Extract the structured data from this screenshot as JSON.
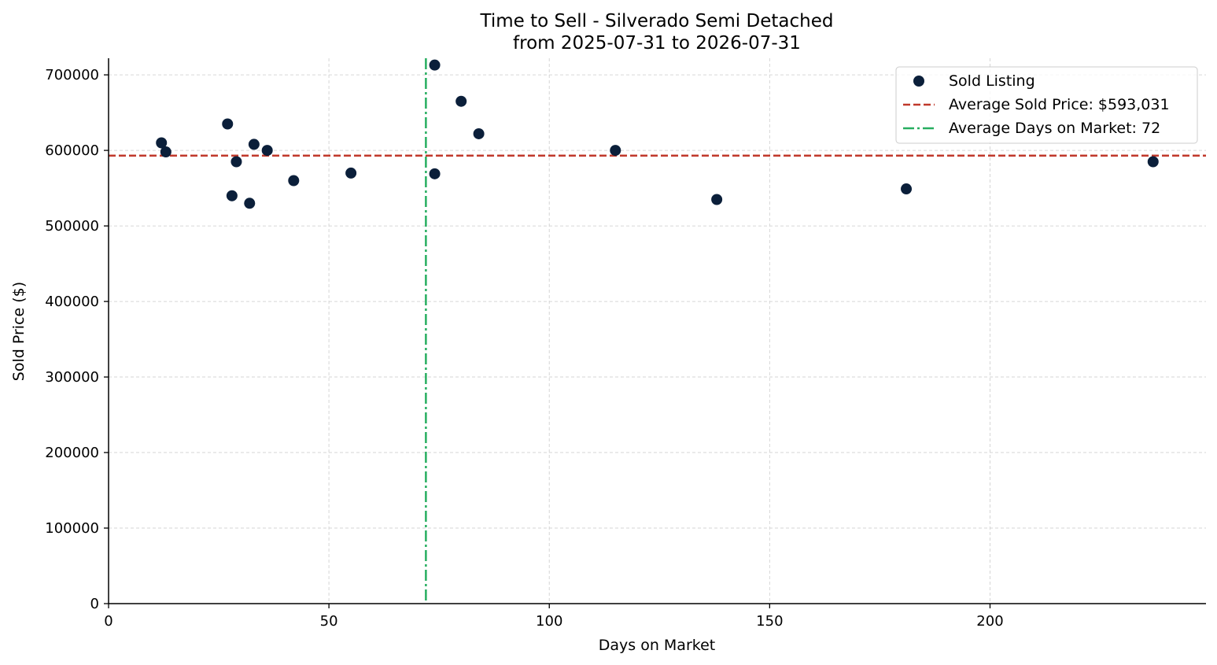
{
  "chart_data": {
    "type": "scatter",
    "title": "Time to Sell - Silverado Semi Detached",
    "subtitle": "from 2025-07-31 to 2026-07-31",
    "xlabel": "Days on Market",
    "ylabel": "Sold Price ($)",
    "xlim": [
      0,
      249
    ],
    "ylim": [
      0,
      722000
    ],
    "x_ticks": [
      0,
      50,
      100,
      150,
      200
    ],
    "y_ticks": [
      0,
      100000,
      200000,
      300000,
      400000,
      500000,
      600000,
      700000
    ],
    "grid": true,
    "legend_position": "top-right",
    "series": [
      {
        "name": "Sold Listing",
        "color": "#0b1f3a",
        "points": [
          {
            "x": 12,
            "y": 610000
          },
          {
            "x": 13,
            "y": 598000
          },
          {
            "x": 27,
            "y": 635000
          },
          {
            "x": 28,
            "y": 540000
          },
          {
            "x": 29,
            "y": 585000
          },
          {
            "x": 32,
            "y": 530000
          },
          {
            "x": 33,
            "y": 608000
          },
          {
            "x": 36,
            "y": 600000
          },
          {
            "x": 42,
            "y": 560000
          },
          {
            "x": 55,
            "y": 570000
          },
          {
            "x": 74,
            "y": 713000
          },
          {
            "x": 74,
            "y": 569000
          },
          {
            "x": 80,
            "y": 665000
          },
          {
            "x": 84,
            "y": 622000
          },
          {
            "x": 115,
            "y": 600000
          },
          {
            "x": 138,
            "y": 535000
          },
          {
            "x": 181,
            "y": 549000
          },
          {
            "x": 237,
            "y": 585000
          }
        ]
      }
    ],
    "reference_lines": [
      {
        "name": "Average Sold Price: $593,031",
        "orientation": "horizontal",
        "value": 593031,
        "color": "#c0392b",
        "style": "dashed"
      },
      {
        "name": "Average Days on Market: 72",
        "orientation": "vertical",
        "value": 72,
        "color": "#27ae60",
        "style": "dashdot"
      }
    ]
  }
}
